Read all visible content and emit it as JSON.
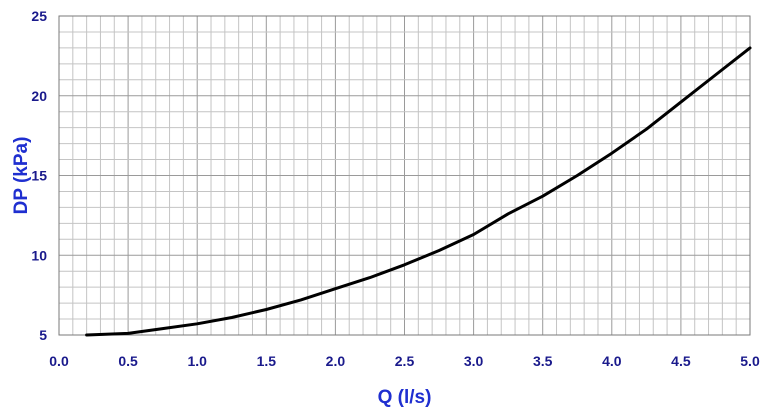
{
  "chart_data": {
    "type": "line",
    "xlabel": "Q (l/s)",
    "ylabel": "DP (kPa)",
    "xlim": [
      0.0,
      5.0
    ],
    "ylim": [
      5,
      25
    ],
    "x_ticks": [
      "0.0",
      "0.5",
      "1.0",
      "1.5",
      "2.0",
      "2.5",
      "3.0",
      "3.5",
      "4.0",
      "4.5",
      "5.0"
    ],
    "y_ticks": [
      "5",
      "10",
      "15",
      "20",
      "25"
    ],
    "grid": true,
    "line_color": "#000000",
    "tick_color": "#1a1a8c",
    "label_color": "#1f2fd0",
    "series": [
      {
        "x": [
          0.2,
          0.5,
          0.75,
          1.0,
          1.25,
          1.5,
          1.75,
          2.0,
          2.25,
          2.5,
          2.75,
          3.0,
          3.25,
          3.5,
          3.75,
          4.0,
          4.25,
          4.5,
          4.75,
          5.0
        ],
        "y": [
          5.0,
          5.1,
          5.4,
          5.7,
          6.1,
          6.6,
          7.2,
          7.9,
          8.6,
          9.4,
          10.3,
          11.3,
          12.6,
          13.7,
          15.0,
          16.4,
          17.9,
          19.6,
          21.3,
          23.0
        ]
      }
    ]
  }
}
